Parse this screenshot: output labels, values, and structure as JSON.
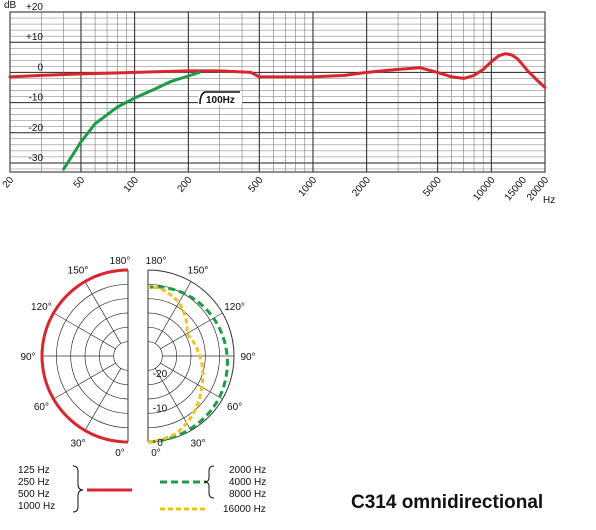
{
  "title": "C314 omnidirectional",
  "chart_data": [
    {
      "type": "line",
      "x_scale": "log",
      "xlim": [
        20,
        20000
      ],
      "ylim": [
        -33,
        20
      ],
      "y_unit": "dB",
      "x_unit": "Hz",
      "y_ticks": [
        "+20",
        "+10",
        "0",
        "-10",
        "-20",
        "-30"
      ],
      "y_tick_values": [
        20,
        10,
        0,
        -10,
        -20,
        -30
      ],
      "x_ticks": [
        "20",
        "50",
        "100",
        "200",
        "500",
        "1000",
        "2000",
        "5000",
        "10000",
        "15000",
        "20000"
      ],
      "x_tick_values": [
        20,
        50,
        100,
        200,
        500,
        1000,
        2000,
        5000,
        10000,
        15000,
        20000
      ],
      "grid": true,
      "annotation": "100Hz",
      "annotation_at": 230,
      "series": [
        {
          "color": "#d9262c",
          "style": "solid",
          "x": [
            20,
            30,
            50,
            100,
            200,
            300,
            450,
            500,
            700,
            1000,
            1500,
            2000,
            3000,
            4000,
            5000,
            6000,
            7000,
            8000,
            9000,
            10000,
            11000,
            12000,
            13000,
            14000,
            15000,
            16000,
            17000,
            18000,
            20000
          ],
          "y": [
            -1.5,
            -1,
            -0.5,
            0,
            0.5,
            0.5,
            0,
            -1.5,
            -1.5,
            -1.5,
            -1,
            0,
            1,
            1.5,
            0,
            -1.5,
            -2,
            -1,
            1,
            3.5,
            5.5,
            6.2,
            5.8,
            4.5,
            2.5,
            0.5,
            -1,
            -2.5,
            -5
          ]
        },
        {
          "color": "#1f9a4a",
          "style": "solid",
          "x": [
            40,
            50,
            60,
            80,
            100,
            130,
            160,
            200,
            230
          ],
          "y": [
            -32,
            -23,
            -17,
            -11.5,
            -8.5,
            -5.5,
            -3,
            -1.2,
            0
          ]
        }
      ]
    },
    {
      "type": "polar",
      "r_ticks": [
        "0",
        "-10",
        "-20"
      ],
      "r_tick_values": [
        0,
        -10,
        -20
      ],
      "r_min": -25,
      "angle_ticks": [
        "0°",
        "30°",
        "60°",
        "90°",
        "120°",
        "150°",
        "180°"
      ],
      "angle_tick_values": [
        0,
        30,
        60,
        90,
        120,
        150,
        180
      ],
      "series": [
        {
          "color": "#d9262c",
          "style": "solid",
          "side": "left",
          "angles": [
            0,
            30,
            60,
            90,
            120,
            150,
            180
          ],
          "values": [
            0,
            0,
            0,
            0,
            0,
            0,
            0
          ]
        },
        {
          "color": "#1f9a4a",
          "style": "dashed",
          "side": "right",
          "angles": [
            0,
            30,
            60,
            90,
            120,
            150,
            180
          ],
          "values": [
            0,
            -0.5,
            -1,
            -2,
            -3,
            -4,
            -5
          ]
        },
        {
          "color": "#f2c21a",
          "style": "dashed",
          "side": "right",
          "angles": [
            0,
            20,
            40,
            60,
            90,
            120,
            150,
            170,
            180
          ],
          "values": [
            0,
            -1,
            -4,
            -7,
            -10,
            -12,
            -7,
            -5,
            -5
          ]
        }
      ]
    }
  ],
  "legend": {
    "group1": [
      "125 Hz",
      "250 Hz",
      "500 Hz",
      "1000 Hz"
    ],
    "group2": [
      "2000 Hz",
      "4000 Hz",
      "8000 Hz"
    ],
    "group3": [
      "16000 Hz"
    ]
  }
}
